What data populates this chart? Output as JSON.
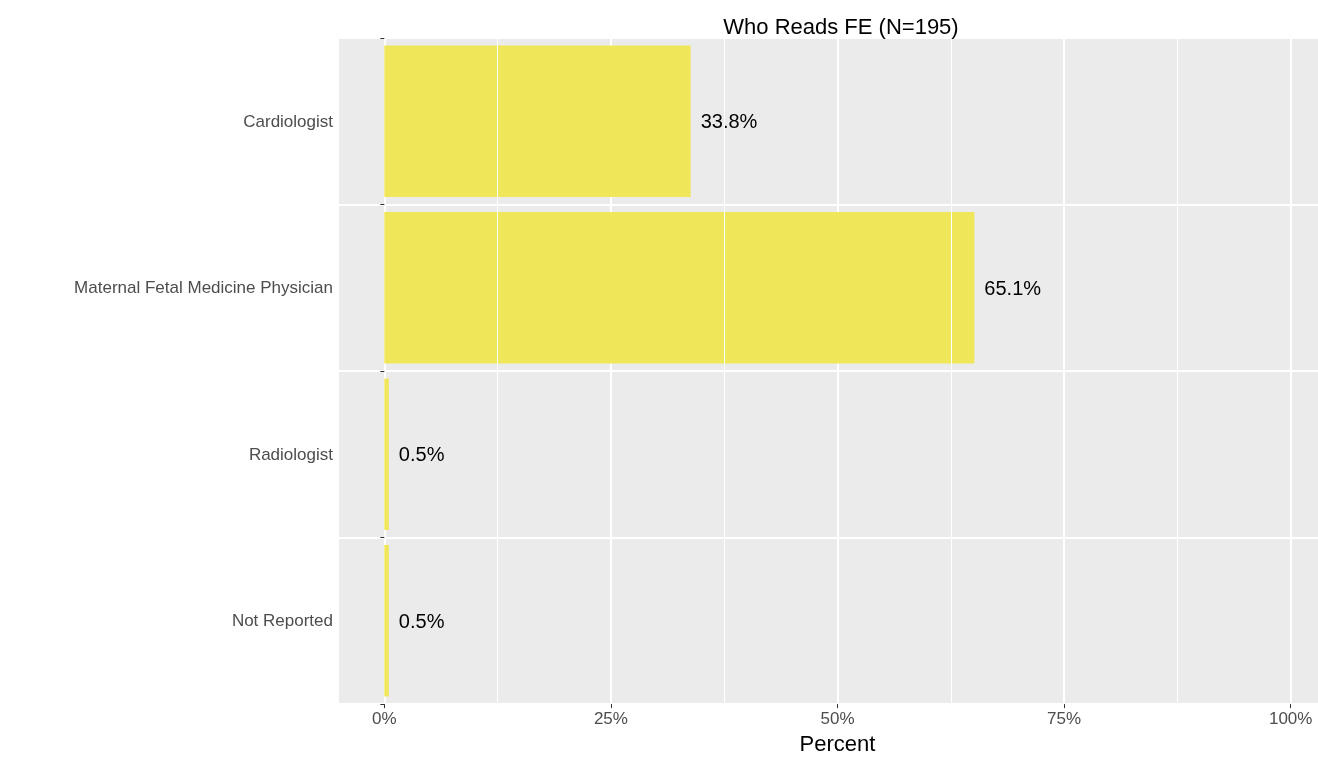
{
  "chart_data": {
    "type": "bar",
    "orientation": "horizontal",
    "title": "Who Reads FE (N=195)",
    "xlabel": "Percent",
    "categories": [
      "Cardiologist",
      "Maternal Fetal Medicine Physician",
      "Radiologist",
      "Not Reported"
    ],
    "values": [
      33.8,
      65.1,
      0.5,
      0.5
    ],
    "value_labels": [
      "33.8%",
      "65.1%",
      "0.5%",
      "0.5%"
    ],
    "color": "#f0e65a",
    "xlim": [
      -5,
      105
    ],
    "xticks": [
      {
        "value": 0,
        "label": "0%"
      },
      {
        "value": 25,
        "label": "25%"
      },
      {
        "value": 50,
        "label": "50%"
      },
      {
        "value": 75,
        "label": "75%"
      },
      {
        "value": 100,
        "label": "100%"
      }
    ],
    "grid": true
  }
}
